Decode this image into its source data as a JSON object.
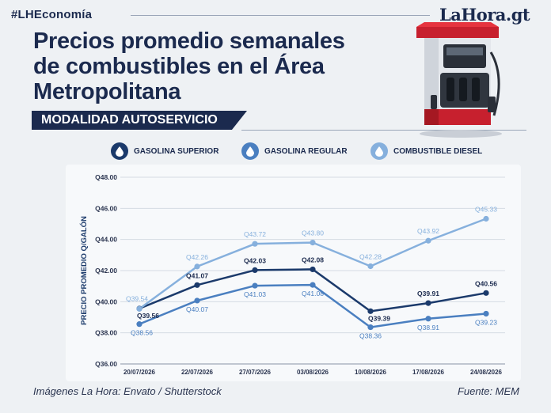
{
  "header": {
    "hashtag": "#LHEconomía",
    "brand": "LaHora.gt",
    "title_lines": [
      "Precios promedio semanales",
      "de combustibles en el Área",
      "Metropolitana"
    ],
    "mode_label": "MODALIDAD AUTOSERVICIO"
  },
  "footer": {
    "credit": "Imágenes La Hora: Envato / Shutterstock",
    "source": "Fuente: MEM"
  },
  "colors": {
    "superior": "#1b3a6b",
    "regular": "#4a7fc0",
    "diesel": "#86b0dd"
  },
  "icons": {
    "drop": "fuel-drop-icon",
    "pump": "fuel-pump-illustration"
  },
  "chart_data": {
    "type": "line",
    "categories": [
      "20/07/2026",
      "22/07/2026",
      "27/07/2026",
      "03/08/2026",
      "10/08/2026",
      "17/08/2026",
      "24/08/2026"
    ],
    "ylabel": "PRECIO PROMEDIO Q/GALÓN",
    "ylim": [
      36,
      48
    ],
    "yticks": [
      "Q36.00",
      "Q38.00",
      "Q40.00",
      "Q42.00",
      "Q44.00",
      "Q46.00",
      "Q48.00"
    ],
    "grid": true,
    "legend_position": "top",
    "series": [
      {
        "name": "GASOLINA SUPERIOR",
        "values": [
          39.56,
          41.07,
          42.03,
          42.08,
          39.39,
          39.91,
          40.56
        ],
        "labels": [
          "Q39.56",
          "Q41.07",
          "Q42.03",
          "Q42.08",
          "Q39.39",
          "Q39.91",
          "Q40.56"
        ]
      },
      {
        "name": "GASOLINA REGULAR",
        "values": [
          38.56,
          40.07,
          41.03,
          41.08,
          38.36,
          38.91,
          39.23
        ],
        "labels": [
          "Q38.56",
          "Q40.07",
          "Q41.03",
          "Q41.08",
          "Q38.36",
          "Q38.91",
          "Q39.23"
        ]
      },
      {
        "name": "COMBUSTIBLE DIESEL",
        "values": [
          39.54,
          42.26,
          43.72,
          43.8,
          42.28,
          43.92,
          45.33
        ],
        "labels": [
          "Q39.54",
          "Q42.26",
          "Q43.72",
          "Q43.80",
          "Q42.28",
          "Q43.92",
          "Q45.33"
        ]
      }
    ]
  }
}
